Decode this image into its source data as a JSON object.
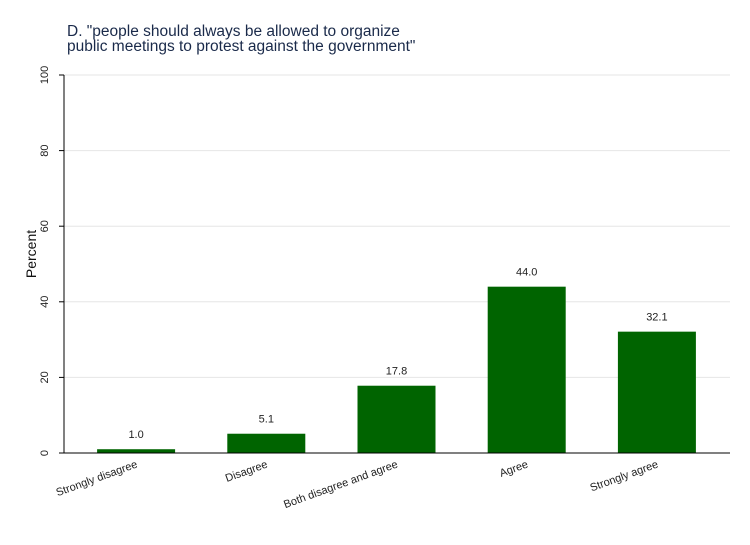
{
  "chart_data": {
    "type": "bar",
    "title_lines": [
      "D. \"people should always be allowed to organize",
      "public meetings to protest against the government\""
    ],
    "ylabel": "Percent",
    "xlabel": "",
    "ylim": [
      0,
      100
    ],
    "yticks": [
      0,
      20,
      40,
      60,
      80,
      100
    ],
    "grid": true,
    "categories": [
      "Strongly disagree",
      "Disagree",
      "Both disagree and agree",
      "Agree",
      "Strongly agree"
    ],
    "values": [
      1.0,
      5.1,
      17.8,
      44.0,
      32.1
    ],
    "data_labels": [
      "1.0",
      "5.1",
      "17.8",
      "44.0",
      "32.1"
    ],
    "bar_color": "#006400"
  }
}
